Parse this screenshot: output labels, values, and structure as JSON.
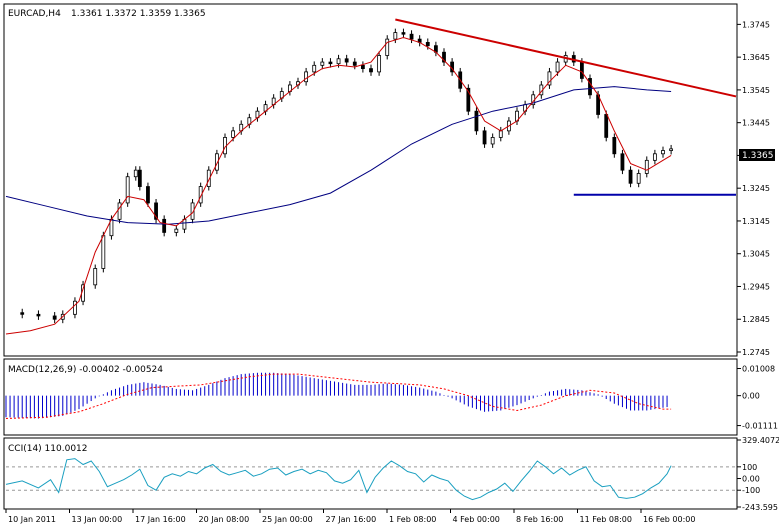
{
  "chart_data": [
    {
      "type": "candlestick",
      "header": {
        "symbol": "EURCAD,H4",
        "values": "1.3361 1.3372 1.3359 1.3365"
      },
      "ylim": [
        1.2745,
        1.3795
      ],
      "y_ticks": [
        "1.3745",
        "1.3645",
        "1.3545",
        "1.3445",
        "1.3345",
        "1.3245",
        "1.3145",
        "1.3045",
        "1.2945",
        "1.2845",
        "1.2745"
      ],
      "current_price_label": "1.3365",
      "x_labels": [
        "10 Jan 2011",
        "13 Jan 00:00",
        "17 Jan 16:00",
        "20 Jan 08:00",
        "25 Jan 00:00",
        "27 Jan 16:00",
        "1 Feb 08:00",
        "4 Feb 00:00",
        "8 Feb 16:00",
        "11 Feb 08:00",
        "16 Feb 00:00"
      ],
      "close_path": [
        [
          0,
          1.2865
        ],
        [
          4,
          1.286
        ],
        [
          8,
          1.2855
        ],
        [
          12,
          1.2845
        ],
        [
          14,
          1.286
        ],
        [
          17,
          1.29
        ],
        [
          19,
          1.295
        ],
        [
          22,
          1.3
        ],
        [
          24,
          1.31
        ],
        [
          26,
          1.315
        ],
        [
          28,
          1.32
        ],
        [
          30,
          1.328
        ],
        [
          32,
          1.33
        ],
        [
          33,
          1.325
        ],
        [
          35,
          1.32
        ],
        [
          37,
          1.315
        ],
        [
          39,
          1.311
        ],
        [
          42,
          1.312
        ],
        [
          44,
          1.315
        ],
        [
          46,
          1.32
        ],
        [
          48,
          1.325
        ],
        [
          50,
          1.33
        ],
        [
          52,
          1.335
        ],
        [
          54,
          1.34
        ],
        [
          56,
          1.342
        ],
        [
          58,
          1.344
        ],
        [
          60,
          1.346
        ],
        [
          62,
          1.348
        ],
        [
          64,
          1.35
        ],
        [
          66,
          1.352
        ],
        [
          68,
          1.354
        ],
        [
          70,
          1.356
        ],
        [
          72,
          1.357
        ],
        [
          74,
          1.36
        ],
        [
          76,
          1.362
        ],
        [
          78,
          1.363
        ],
        [
          80,
          1.3625
        ],
        [
          82,
          1.364
        ],
        [
          84,
          1.363
        ],
        [
          86,
          1.362
        ],
        [
          88,
          1.361
        ],
        [
          90,
          1.36
        ],
        [
          92,
          1.365
        ],
        [
          94,
          1.37
        ],
        [
          96,
          1.372
        ],
        [
          98,
          1.3715
        ],
        [
          100,
          1.37
        ],
        [
          102,
          1.369
        ],
        [
          104,
          1.368
        ],
        [
          106,
          1.366
        ],
        [
          108,
          1.363
        ],
        [
          110,
          1.36
        ],
        [
          112,
          1.355
        ],
        [
          114,
          1.348
        ],
        [
          116,
          1.342
        ],
        [
          118,
          1.338
        ],
        [
          120,
          1.34
        ],
        [
          122,
          1.342
        ],
        [
          124,
          1.345
        ],
        [
          126,
          1.348
        ],
        [
          128,
          1.35
        ],
        [
          130,
          1.353
        ],
        [
          132,
          1.356
        ],
        [
          134,
          1.36
        ],
        [
          136,
          1.363
        ],
        [
          138,
          1.365
        ],
        [
          140,
          1.363
        ],
        [
          142,
          1.358
        ],
        [
          144,
          1.353
        ],
        [
          146,
          1.347
        ],
        [
          148,
          1.34
        ],
        [
          150,
          1.335
        ],
        [
          152,
          1.33
        ],
        [
          154,
          1.326
        ],
        [
          156,
          1.329
        ],
        [
          158,
          1.333
        ],
        [
          160,
          1.335
        ],
        [
          162,
          1.336
        ],
        [
          164,
          1.3365
        ]
      ],
      "red_ma_path": [
        [
          0,
          1.28
        ],
        [
          6,
          1.281
        ],
        [
          12,
          1.283
        ],
        [
          18,
          1.29
        ],
        [
          22,
          1.305
        ],
        [
          26,
          1.315
        ],
        [
          30,
          1.322
        ],
        [
          34,
          1.321
        ],
        [
          38,
          1.314
        ],
        [
          42,
          1.313
        ],
        [
          46,
          1.317
        ],
        [
          50,
          1.327
        ],
        [
          54,
          1.337
        ],
        [
          58,
          1.342
        ],
        [
          62,
          1.346
        ],
        [
          66,
          1.35
        ],
        [
          70,
          1.354
        ],
        [
          74,
          1.358
        ],
        [
          78,
          1.361
        ],
        [
          82,
          1.362
        ],
        [
          86,
          1.3615
        ],
        [
          90,
          1.363
        ],
        [
          94,
          1.369
        ],
        [
          98,
          1.3705
        ],
        [
          102,
          1.369
        ],
        [
          106,
          1.366
        ],
        [
          110,
          1.361
        ],
        [
          114,
          1.354
        ],
        [
          118,
          1.345
        ],
        [
          122,
          1.342
        ],
        [
          126,
          1.345
        ],
        [
          130,
          1.351
        ],
        [
          134,
          1.357
        ],
        [
          138,
          1.362
        ],
        [
          142,
          1.36
        ],
        [
          146,
          1.353
        ],
        [
          150,
          1.342
        ],
        [
          154,
          1.332
        ],
        [
          158,
          1.33
        ],
        [
          162,
          1.333
        ],
        [
          164,
          1.3345
        ]
      ],
      "blue_ma_path": [
        [
          0,
          1.322
        ],
        [
          10,
          1.319
        ],
        [
          20,
          1.316
        ],
        [
          30,
          1.314
        ],
        [
          40,
          1.3135
        ],
        [
          50,
          1.3145
        ],
        [
          60,
          1.317
        ],
        [
          70,
          1.3195
        ],
        [
          80,
          1.323
        ],
        [
          90,
          1.33
        ],
        [
          100,
          1.338
        ],
        [
          110,
          1.344
        ],
        [
          120,
          1.348
        ],
        [
          130,
          1.3505
        ],
        [
          140,
          1.3545
        ],
        [
          150,
          1.3555
        ],
        [
          158,
          1.3545
        ],
        [
          164,
          1.354
        ]
      ],
      "red_trendline": [
        [
          96,
          1.376
        ],
        [
          180,
          1.3525
        ]
      ],
      "blue_hline": [
        [
          140,
          1.3225
        ],
        [
          180,
          1.3225
        ]
      ]
    },
    {
      "type": "histogram",
      "label": "MACD(12,26,9) -0.00402 -0.00524",
      "y_ticks": [
        "0.01008",
        "0.00",
        "-0.01111"
      ],
      "ylim": [
        -0.0135,
        0.0125
      ],
      "bars": [
        [
          0,
          -0.008
        ],
        [
          8,
          -0.0085
        ],
        [
          14,
          -0.0075
        ],
        [
          18,
          -0.005
        ],
        [
          22,
          -0.001
        ],
        [
          26,
          0.002
        ],
        [
          30,
          0.004
        ],
        [
          34,
          0.005
        ],
        [
          38,
          0.004
        ],
        [
          42,
          0.0025
        ],
        [
          46,
          0.002
        ],
        [
          50,
          0.004
        ],
        [
          54,
          0.0065
        ],
        [
          58,
          0.008
        ],
        [
          62,
          0.0085
        ],
        [
          66,
          0.0085
        ],
        [
          70,
          0.008
        ],
        [
          74,
          0.007
        ],
        [
          78,
          0.006
        ],
        [
          82,
          0.005
        ],
        [
          86,
          0.004
        ],
        [
          90,
          0.004
        ],
        [
          94,
          0.0045
        ],
        [
          98,
          0.004
        ],
        [
          102,
          0.003
        ],
        [
          106,
          0.0015
        ],
        [
          110,
          -0.001
        ],
        [
          114,
          -0.004
        ],
        [
          118,
          -0.006
        ],
        [
          122,
          -0.0055
        ],
        [
          126,
          -0.0035
        ],
        [
          130,
          -0.001
        ],
        [
          134,
          0.0015
        ],
        [
          138,
          0.0025
        ],
        [
          142,
          0.002
        ],
        [
          146,
          0.0005
        ],
        [
          150,
          -0.003
        ],
        [
          154,
          -0.0055
        ],
        [
          158,
          -0.0055
        ],
        [
          162,
          -0.0045
        ],
        [
          164,
          -0.004
        ]
      ],
      "signal_path": [
        [
          0,
          -0.0085
        ],
        [
          10,
          -0.008
        ],
        [
          18,
          -0.006
        ],
        [
          24,
          -0.003
        ],
        [
          30,
          0.0005
        ],
        [
          36,
          0.003
        ],
        [
          42,
          0.0035
        ],
        [
          48,
          0.004
        ],
        [
          54,
          0.0055
        ],
        [
          60,
          0.007
        ],
        [
          66,
          0.008
        ],
        [
          72,
          0.008
        ],
        [
          78,
          0.007
        ],
        [
          84,
          0.006
        ],
        [
          90,
          0.005
        ],
        [
          96,
          0.0045
        ],
        [
          102,
          0.004
        ],
        [
          108,
          0.0025
        ],
        [
          114,
          0.0
        ],
        [
          120,
          -0.004
        ],
        [
          126,
          -0.0055
        ],
        [
          132,
          -0.0035
        ],
        [
          138,
          0.0
        ],
        [
          144,
          0.002
        ],
        [
          150,
          0.001
        ],
        [
          156,
          -0.003
        ],
        [
          162,
          -0.005
        ],
        [
          164,
          -0.005
        ]
      ],
      "bar_color": "#0000cc",
      "signal_color": "#ff0000"
    },
    {
      "type": "line",
      "label": "CCI(14) 110.0012",
      "y_ticks": [
        "329.4072",
        "100",
        "0.00",
        "-100",
        "-243.595"
      ],
      "ylim": [
        -243.595,
        329.4072
      ],
      "levels": [
        100,
        -100
      ],
      "line_color": "#1a9fc0",
      "values": [
        [
          0,
          -50
        ],
        [
          4,
          -20
        ],
        [
          8,
          -80
        ],
        [
          11,
          -10
        ],
        [
          13,
          -120
        ],
        [
          15,
          160
        ],
        [
          17,
          170
        ],
        [
          19,
          120
        ],
        [
          21,
          150
        ],
        [
          23,
          60
        ],
        [
          25,
          -70
        ],
        [
          27,
          -40
        ],
        [
          29,
          -10
        ],
        [
          31,
          30
        ],
        [
          33,
          80
        ],
        [
          35,
          -60
        ],
        [
          37,
          -100
        ],
        [
          39,
          10
        ],
        [
          41,
          40
        ],
        [
          43,
          20
        ],
        [
          45,
          60
        ],
        [
          47,
          40
        ],
        [
          49,
          90
        ],
        [
          51,
          120
        ],
        [
          53,
          60
        ],
        [
          55,
          30
        ],
        [
          57,
          50
        ],
        [
          59,
          70
        ],
        [
          61,
          20
        ],
        [
          63,
          40
        ],
        [
          65,
          80
        ],
        [
          67,
          90
        ],
        [
          69,
          30
        ],
        [
          71,
          60
        ],
        [
          73,
          80
        ],
        [
          75,
          40
        ],
        [
          77,
          70
        ],
        [
          79,
          50
        ],
        [
          81,
          -20
        ],
        [
          83,
          -40
        ],
        [
          85,
          -10
        ],
        [
          87,
          70
        ],
        [
          89,
          -120
        ],
        [
          91,
          10
        ],
        [
          93,
          90
        ],
        [
          95,
          150
        ],
        [
          97,
          110
        ],
        [
          99,
          60
        ],
        [
          101,
          40
        ],
        [
          103,
          -30
        ],
        [
          105,
          30
        ],
        [
          107,
          0
        ],
        [
          109,
          -20
        ],
        [
          111,
          -100
        ],
        [
          113,
          -150
        ],
        [
          115,
          -180
        ],
        [
          117,
          -160
        ],
        [
          119,
          -120
        ],
        [
          121,
          -90
        ],
        [
          123,
          -40
        ],
        [
          125,
          -110
        ],
        [
          127,
          -20
        ],
        [
          129,
          60
        ],
        [
          131,
          150
        ],
        [
          133,
          100
        ],
        [
          135,
          40
        ],
        [
          137,
          90
        ],
        [
          139,
          30
        ],
        [
          141,
          70
        ],
        [
          143,
          100
        ],
        [
          145,
          -20
        ],
        [
          147,
          -70
        ],
        [
          149,
          -60
        ],
        [
          151,
          -160
        ],
        [
          153,
          -170
        ],
        [
          155,
          -160
        ],
        [
          157,
          -130
        ],
        [
          159,
          -80
        ],
        [
          161,
          -40
        ],
        [
          163,
          40
        ],
        [
          164,
          110
        ]
      ]
    }
  ]
}
